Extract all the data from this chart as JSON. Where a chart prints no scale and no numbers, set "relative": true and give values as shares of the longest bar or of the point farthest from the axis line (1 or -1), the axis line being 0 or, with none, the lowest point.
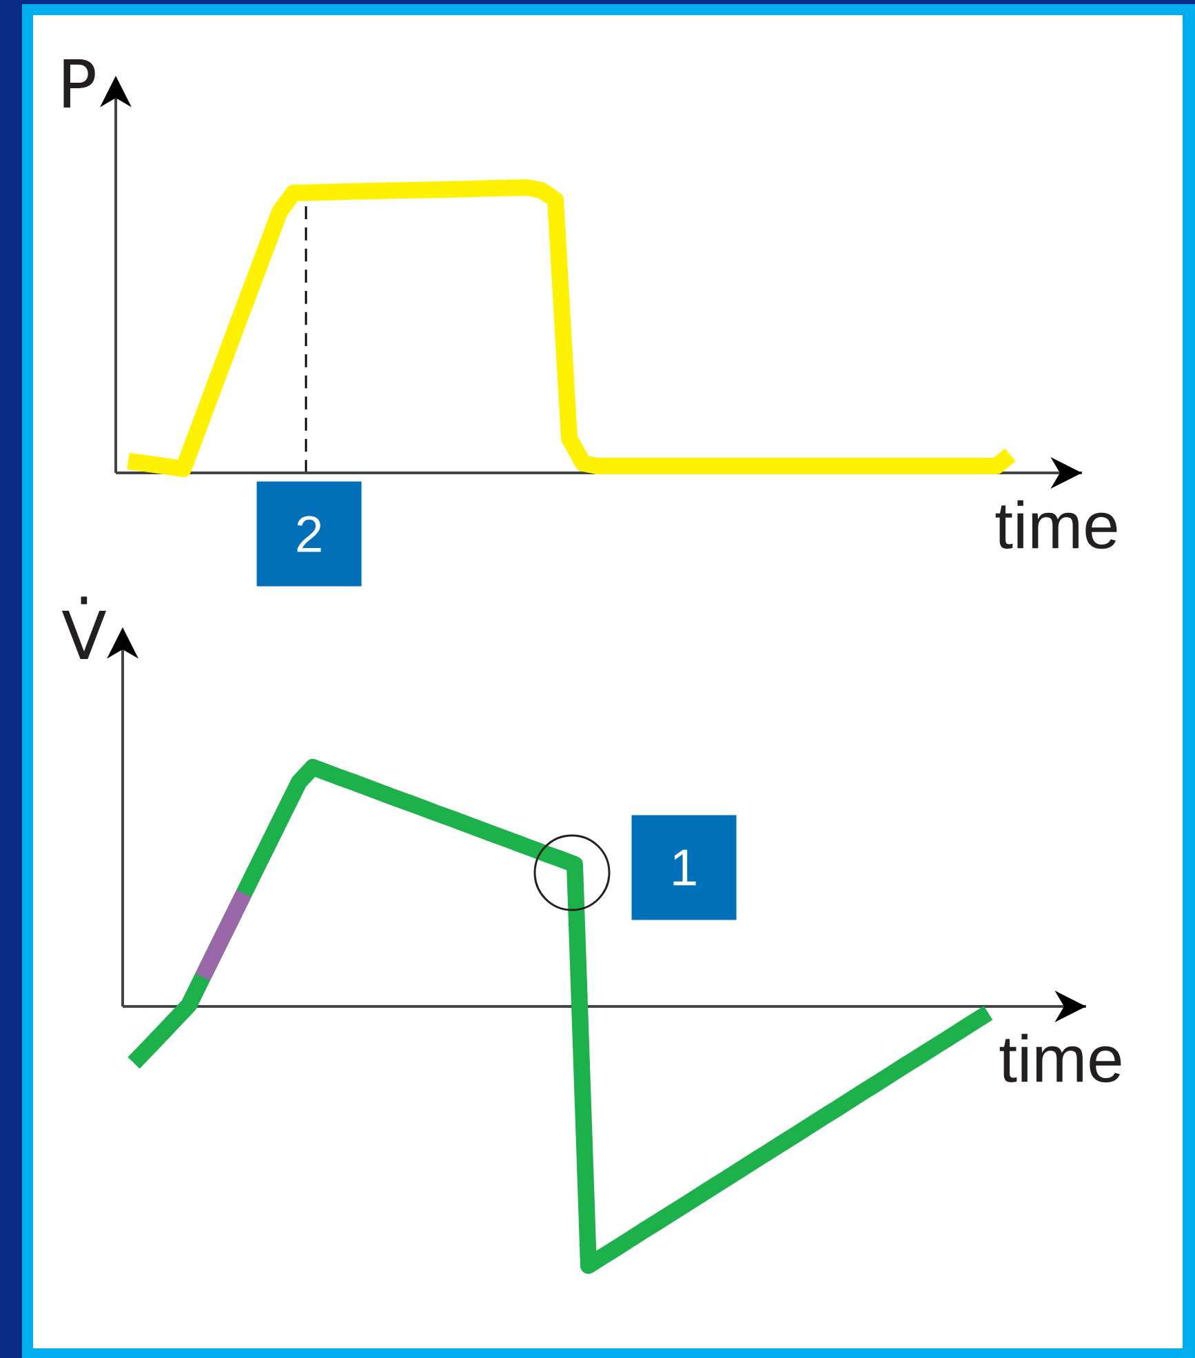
{
  "chart_data": [
    {
      "type": "line",
      "ylabel": "P",
      "xlabel": "time",
      "relative": true,
      "categories": [
        null,
        null,
        null,
        null,
        null,
        null,
        null,
        null,
        null,
        null,
        null,
        null,
        null,
        null,
        null,
        null,
        null,
        null,
        null,
        null,
        null,
        null,
        null,
        null,
        null,
        null,
        null,
        null,
        null,
        null,
        null,
        null,
        null,
        null,
        null,
        null,
        null,
        null,
        null,
        null,
        null,
        null,
        null,
        null,
        null,
        null,
        null,
        null,
        null,
        null,
        null,
        null,
        null,
        null,
        null,
        null,
        null,
        null,
        null,
        null,
        null,
        null,
        null,
        null,
        null
      ],
      "series": [
        {
          "color": "#fff200",
          "values": [
            0.041,
            0.035,
            0.028,
            0.021,
            0.014,
            0.143,
            0.272,
            0.401,
            0.53,
            0.659,
            0.787,
            0.916,
            0.981,
            0.982,
            0.983,
            0.984,
            0.986,
            0.987,
            0.988,
            0.989,
            0.99,
            0.991,
            0.992,
            0.993,
            0.994,
            0.995,
            0.997,
            0.998,
            0.999,
            1.0,
            0.99,
            0.957,
            0.121,
            0.034,
            0.024,
            0.024,
            0.024,
            0.024,
            0.024,
            0.024,
            0.024,
            0.024,
            0.024,
            0.024,
            0.024,
            0.024,
            0.024,
            0.024,
            0.024,
            0.024,
            0.024,
            0.024,
            0.024,
            0.024,
            0.024,
            0.024,
            0.024,
            0.024,
            0.024,
            0.024,
            0.024,
            0.024,
            0.024,
            0.024,
            0.063
          ]
        }
      ],
      "annotations": [
        "2"
      ]
    },
    {
      "type": "line",
      "ylabel": "V̇",
      "xlabel": "time",
      "relative": true,
      "categories": [
        null,
        null,
        null,
        null,
        null,
        null,
        null,
        null,
        null,
        null,
        null,
        null,
        null,
        null,
        null,
        null,
        null,
        null,
        null,
        null,
        null,
        null,
        null,
        null,
        null,
        null,
        null,
        null,
        null,
        null,
        null,
        null,
        null,
        null,
        null,
        null,
        null,
        null,
        null,
        null,
        null,
        null,
        null,
        null,
        null,
        null,
        null,
        null,
        null,
        null,
        null,
        null,
        null,
        null,
        null,
        null,
        null,
        null,
        null,
        null,
        null,
        null,
        null
      ],
      "series": [
        {
          "color": "#1db14b",
          "values": [
            -0.218,
            -0.163,
            -0.107,
            -0.051,
            0.005,
            0.113,
            0.221,
            0.328,
            0.436,
            0.544,
            0.651,
            0.759,
            0.866,
            0.923,
            0.903,
            0.883,
            0.864,
            0.844,
            0.824,
            0.804,
            0.785,
            0.765,
            0.745,
            0.726,
            0.706,
            0.686,
            0.666,
            0.647,
            0.627,
            0.607,
            0.587,
            0.568,
            0.548,
            -1.0,
            -0.966,
            -0.933,
            -0.899,
            -0.865,
            -0.832,
            -0.798,
            -0.765,
            -0.731,
            -0.697,
            -0.664,
            -0.63,
            -0.596,
            -0.563,
            -0.529,
            -0.496,
            -0.462,
            -0.428,
            -0.395,
            -0.361,
            -0.327,
            -0.294,
            -0.26,
            -0.226,
            -0.193,
            -0.159,
            -0.126,
            -0.092,
            -0.058,
            -0.025
          ]
        },
        {
          "color": "#9a68a8",
          "values": [
            null,
            null,
            null,
            null,
            null,
            0.113,
            0.221,
            0.328,
            0.436,
            null,
            null,
            null,
            null,
            null,
            null,
            null,
            null,
            null,
            null,
            null,
            null,
            null,
            null,
            null,
            null,
            null,
            null,
            null,
            null,
            null,
            null,
            null,
            null,
            null,
            null,
            null,
            null,
            null,
            null,
            null,
            null,
            null,
            null,
            null,
            null,
            null,
            null,
            null,
            null,
            null,
            null,
            null,
            null,
            null,
            null,
            null,
            null,
            null,
            null,
            null,
            null,
            null,
            null
          ]
        }
      ],
      "annotations": [
        "1"
      ]
    }
  ]
}
